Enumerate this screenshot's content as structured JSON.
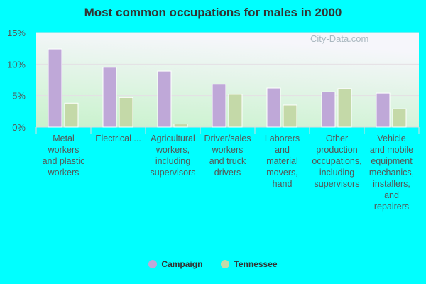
{
  "chart_data": {
    "type": "bar",
    "title": "Most common occupations for males in 2000",
    "categories": [
      "Metal workers and plastic workers",
      "Electrical ...",
      "Agricultural workers, including supervisors",
      "Driver/sales workers and truck drivers",
      "Laborers and material movers, hand",
      "Other production occupations, including supervisors",
      "Vehicle and mobile equipment mechanics, installers, and repairers"
    ],
    "category_lines": [
      [
        "Metal",
        "workers",
        "and plastic",
        "workers"
      ],
      [
        "Electrical ..."
      ],
      [
        "Agricultural",
        "workers,",
        "including",
        "supervisors"
      ],
      [
        "Driver/sales",
        "workers",
        "and truck",
        "drivers"
      ],
      [
        "Laborers",
        "and",
        "material",
        "movers,",
        "hand"
      ],
      [
        "Other",
        "production",
        "occupations,",
        "including",
        "supervisors"
      ],
      [
        "Vehicle",
        "and mobile",
        "equipment",
        "mechanics,",
        "installers,",
        "and",
        "repairers"
      ]
    ],
    "series": [
      {
        "name": "Campaign",
        "color": "#bfa8d8",
        "values": [
          12.4,
          9.5,
          8.9,
          6.8,
          6.2,
          5.6,
          5.4
        ]
      },
      {
        "name": "Tennessee",
        "color": "#c4d9a8",
        "values": [
          3.8,
          4.7,
          0.5,
          5.2,
          3.5,
          6.1,
          2.9
        ]
      }
    ],
    "yticks": [
      "0%",
      "5%",
      "10%",
      "15%"
    ],
    "ylim": [
      0,
      15
    ],
    "grid": true,
    "legend": "bottom"
  },
  "watermark": "City-Data.com"
}
